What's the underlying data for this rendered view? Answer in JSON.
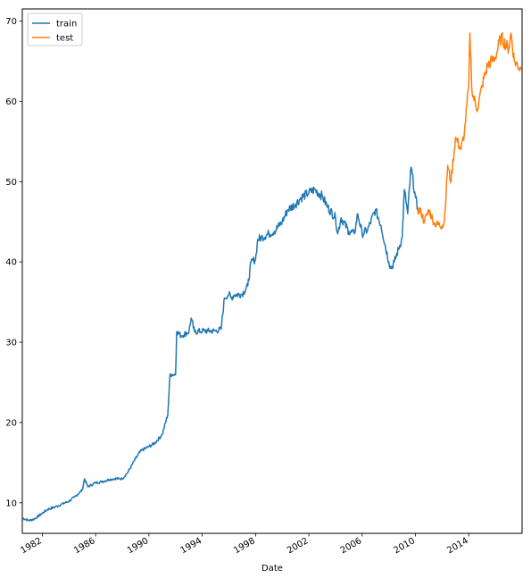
{
  "chart_data": {
    "type": "line",
    "title": "",
    "xlabel": "Date",
    "ylabel": "",
    "x_axis": {
      "type": "date",
      "range": [
        "1980-07-01",
        "2017-12-31"
      ],
      "ticks": [
        "1982",
        "1986",
        "1990",
        "1994",
        "1998",
        "2002",
        "2006",
        "2010",
        "2014"
      ]
    },
    "y_axis": {
      "range": [
        6.2,
        71.5
      ],
      "ticks": [
        10,
        20,
        30,
        40,
        50,
        60,
        70
      ]
    },
    "grid": false,
    "legend": {
      "position": "top-left",
      "entries": [
        "train",
        "test"
      ]
    },
    "series": [
      {
        "name": "train",
        "color": "#1f77b4",
        "points": [
          [
            "1980-07-01",
            8.1
          ],
          [
            "1981-01-01",
            7.8
          ],
          [
            "1981-06-01",
            8.0
          ],
          [
            "1982-01-01",
            8.7
          ],
          [
            "1982-06-01",
            9.2
          ],
          [
            "1983-01-01",
            9.5
          ],
          [
            "1983-06-01",
            9.8
          ],
          [
            "1984-01-01",
            10.2
          ],
          [
            "1984-06-01",
            10.7
          ],
          [
            "1985-01-01",
            11.6
          ],
          [
            "1985-03-01",
            13.0
          ],
          [
            "1985-06-01",
            12.0
          ],
          [
            "1986-01-01",
            12.5
          ],
          [
            "1986-06-01",
            12.6
          ],
          [
            "1987-01-01",
            12.9
          ],
          [
            "1987-06-01",
            13.0
          ],
          [
            "1988-01-01",
            13.0
          ],
          [
            "1988-06-01",
            13.8
          ],
          [
            "1989-01-01",
            15.5
          ],
          [
            "1989-06-01",
            16.5
          ],
          [
            "1990-01-01",
            17.0
          ],
          [
            "1990-06-01",
            17.4
          ],
          [
            "1991-01-01",
            18.5
          ],
          [
            "1991-06-01",
            21.0
          ],
          [
            "1991-08-01",
            26.0
          ],
          [
            "1992-01-01",
            26.0
          ],
          [
            "1992-02-01",
            31.3
          ],
          [
            "1992-06-01",
            30.8
          ],
          [
            "1993-01-01",
            31.3
          ],
          [
            "1993-03-01",
            33.0
          ],
          [
            "1993-06-01",
            31.3
          ],
          [
            "1994-01-01",
            31.4
          ],
          [
            "1994-06-01",
            31.4
          ],
          [
            "1995-01-01",
            31.4
          ],
          [
            "1995-06-01",
            31.6
          ],
          [
            "1995-09-01",
            35.5
          ],
          [
            "1996-01-01",
            36.0
          ],
          [
            "1996-03-01",
            35.5
          ],
          [
            "1996-06-01",
            35.9
          ],
          [
            "1997-01-01",
            36.0
          ],
          [
            "1997-06-01",
            37.0
          ],
          [
            "1997-09-01",
            40.0
          ],
          [
            "1998-01-01",
            40.3
          ],
          [
            "1998-03-01",
            42.8
          ],
          [
            "1998-06-01",
            43.0
          ],
          [
            "1999-01-01",
            43.5
          ],
          [
            "1999-06-01",
            43.8
          ],
          [
            "2000-01-01",
            45.0
          ],
          [
            "2000-06-01",
            46.5
          ],
          [
            "2001-01-01",
            47.2
          ],
          [
            "2001-06-01",
            48.0
          ],
          [
            "2002-01-01",
            48.6
          ],
          [
            "2002-06-01",
            49.0
          ],
          [
            "2003-01-01",
            48.2
          ],
          [
            "2003-06-01",
            46.8
          ],
          [
            "2004-01-01",
            45.5
          ],
          [
            "2004-03-01",
            43.5
          ],
          [
            "2004-06-01",
            45.5
          ],
          [
            "2005-01-01",
            43.8
          ],
          [
            "2005-06-01",
            43.5
          ],
          [
            "2005-09-01",
            46.0
          ],
          [
            "2006-01-01",
            43.5
          ],
          [
            "2006-06-01",
            44.0
          ],
          [
            "2007-01-01",
            46.5
          ],
          [
            "2007-06-01",
            44.5
          ],
          [
            "2008-01-01",
            40.0
          ],
          [
            "2008-03-01",
            39.2
          ],
          [
            "2008-06-01",
            40.0
          ],
          [
            "2009-01-01",
            43.0
          ],
          [
            "2009-03-01",
            49.0
          ],
          [
            "2009-06-01",
            46.0
          ],
          [
            "2009-09-01",
            51.8
          ],
          [
            "2010-01-01",
            48.0
          ],
          [
            "2010-03-01",
            46.5
          ]
        ]
      },
      {
        "name": "test",
        "color": "#ff7f0e",
        "points": [
          [
            "2010-03-01",
            46.5
          ],
          [
            "2010-06-01",
            46.2
          ],
          [
            "2010-09-01",
            45.0
          ],
          [
            "2011-01-01",
            46.5
          ],
          [
            "2011-06-01",
            44.8
          ],
          [
            "2012-01-01",
            44.5
          ],
          [
            "2012-03-01",
            45.0
          ],
          [
            "2012-06-01",
            52.0
          ],
          [
            "2012-09-01",
            50.0
          ],
          [
            "2013-01-01",
            55.5
          ],
          [
            "2013-06-01",
            54.0
          ],
          [
            "2013-09-01",
            56.0
          ],
          [
            "2014-01-01",
            62.0
          ],
          [
            "2014-02-01",
            68.5
          ],
          [
            "2014-04-01",
            61.0
          ],
          [
            "2014-09-01",
            59.0
          ],
          [
            "2015-01-01",
            62.0
          ],
          [
            "2015-06-01",
            64.5
          ],
          [
            "2016-01-01",
            65.5
          ],
          [
            "2016-06-01",
            68.0
          ],
          [
            "2017-01-01",
            66.5
          ],
          [
            "2017-03-01",
            68.5
          ],
          [
            "2017-06-01",
            65.0
          ],
          [
            "2017-12-01",
            64.0
          ]
        ]
      }
    ]
  }
}
